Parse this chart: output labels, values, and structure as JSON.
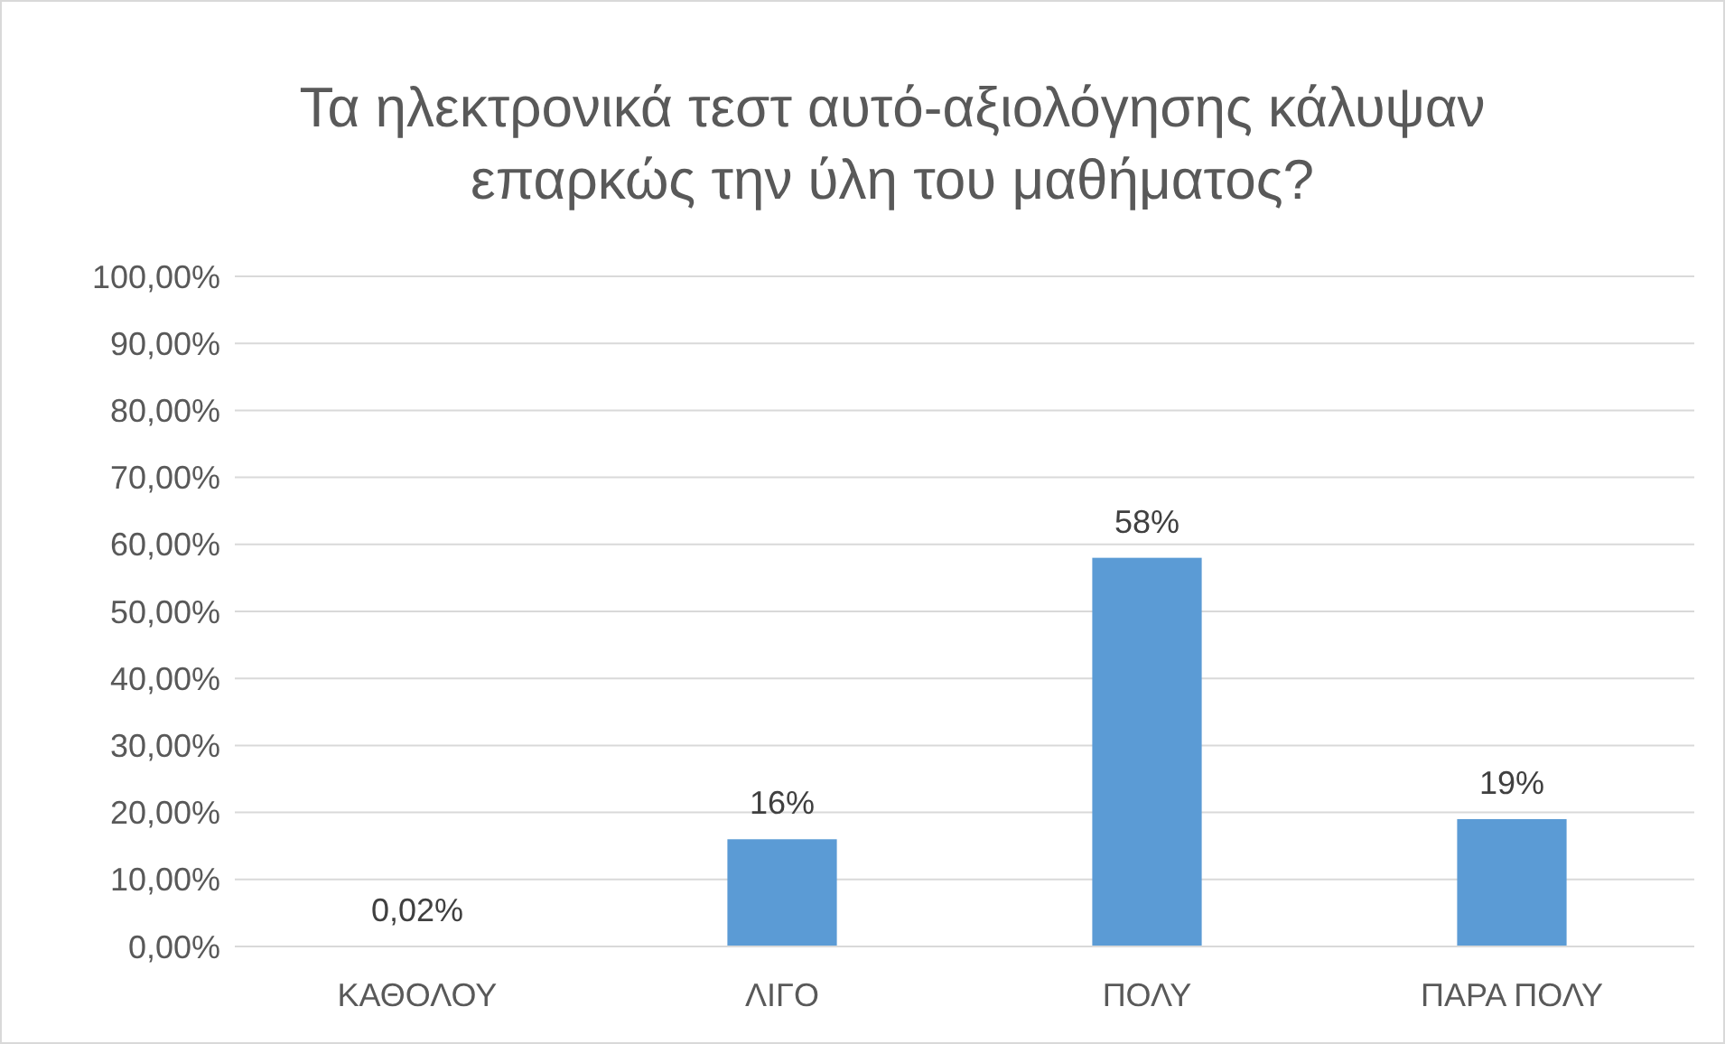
{
  "chart_data": {
    "type": "bar",
    "title": "Τα ηλεκτρονικά τεστ αυτό-αξιολόγησης κάλυψαν επαρκώς την ύλη του μαθήματος?",
    "categories": [
      "ΚΑΘΟΛΟΥ",
      "ΛΙΓΟ",
      "ΠΟΛΥ",
      "ΠΑΡΑ ΠΟΛΥ"
    ],
    "values": [
      0.02,
      16,
      58,
      19
    ],
    "value_labels": [
      "0,02%",
      "16%",
      "58%",
      "19%"
    ],
    "color": "#5b9bd5",
    "ylim": [
      0,
      100
    ],
    "yticks": [
      {
        "value": 0,
        "label": "0,00%"
      },
      {
        "value": 10,
        "label": "10,00%"
      },
      {
        "value": 20,
        "label": "20,00%"
      },
      {
        "value": 30,
        "label": "30,00%"
      },
      {
        "value": 40,
        "label": "40,00%"
      },
      {
        "value": 50,
        "label": "50,00%"
      },
      {
        "value": 60,
        "label": "60,00%"
      },
      {
        "value": 70,
        "label": "70,00%"
      },
      {
        "value": 80,
        "label": "80,00%"
      },
      {
        "value": 90,
        "label": "90,00%"
      },
      {
        "value": 100,
        "label": "100,00%"
      }
    ],
    "grid": "y"
  }
}
